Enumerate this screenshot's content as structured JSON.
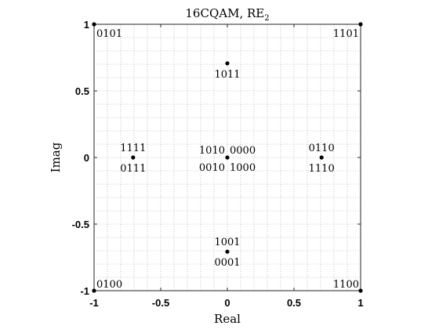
{
  "chart_data": {
    "type": "scatter",
    "title": "16CQAM, RE",
    "title_subscript": "2",
    "xlabel": "Real",
    "ylabel": "Imag",
    "xlim": [
      -1,
      1
    ],
    "ylim": [
      -1,
      1
    ],
    "xticks": [
      "-1",
      "-0.5",
      "0",
      "0.5",
      "1"
    ],
    "yticks": [
      "-1",
      "-0.5",
      "0",
      "0.5",
      "1"
    ],
    "xtick_values": [
      -1,
      -0.5,
      0,
      0.5,
      1
    ],
    "ytick_values": [
      -1,
      -0.5,
      0,
      0.5,
      1
    ],
    "grid": "minor-dotted",
    "marker_color": "#000000",
    "points": [
      {
        "x": -1,
        "y": 1,
        "labels": [
          "0101"
        ]
      },
      {
        "x": 1,
        "y": 1,
        "labels": [
          "1101"
        ]
      },
      {
        "x": -1,
        "y": -1,
        "labels": [
          "0100"
        ]
      },
      {
        "x": 1,
        "y": -1,
        "labels": [
          "1100"
        ]
      },
      {
        "x": 0,
        "y": 0.707,
        "labels": [
          "1011"
        ]
      },
      {
        "x": 0,
        "y": -0.707,
        "labels": [
          "1001",
          "0001"
        ]
      },
      {
        "x": -0.707,
        "y": 0,
        "labels": [
          "1111",
          "0111"
        ]
      },
      {
        "x": 0.707,
        "y": 0,
        "labels": [
          "0110",
          "1110"
        ]
      },
      {
        "x": 0,
        "y": 0,
        "labels": [
          "1010",
          "0000",
          "0010",
          "1000"
        ]
      }
    ]
  }
}
